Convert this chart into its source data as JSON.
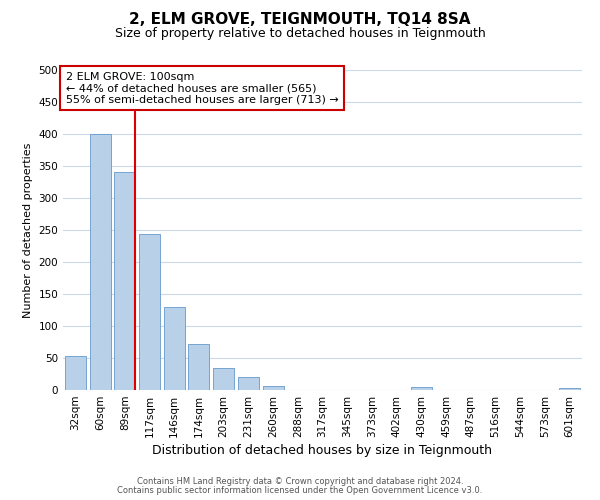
{
  "title": "2, ELM GROVE, TEIGNMOUTH, TQ14 8SA",
  "subtitle": "Size of property relative to detached houses in Teignmouth",
  "xlabel": "Distribution of detached houses by size in Teignmouth",
  "ylabel": "Number of detached properties",
  "bar_labels": [
    "32sqm",
    "60sqm",
    "89sqm",
    "117sqm",
    "146sqm",
    "174sqm",
    "203sqm",
    "231sqm",
    "260sqm",
    "288sqm",
    "317sqm",
    "345sqm",
    "373sqm",
    "402sqm",
    "430sqm",
    "459sqm",
    "487sqm",
    "516sqm",
    "544sqm",
    "573sqm",
    "601sqm"
  ],
  "bar_values": [
    53,
    400,
    340,
    243,
    130,
    72,
    35,
    20,
    6,
    0,
    0,
    0,
    0,
    0,
    5,
    0,
    0,
    0,
    0,
    0,
    3
  ],
  "bar_color": "#b8d0e8",
  "bar_edge_color": "#6699cc",
  "vline_color": "#dd0000",
  "vline_pos": 2.425,
  "ylim": [
    0,
    500
  ],
  "yticks": [
    0,
    50,
    100,
    150,
    200,
    250,
    300,
    350,
    400,
    450,
    500
  ],
  "annotation_text": "2 ELM GROVE: 100sqm\n← 44% of detached houses are smaller (565)\n55% of semi-detached houses are larger (713) →",
  "annotation_box_color": "#ffffff",
  "annotation_box_edge": "#cc0000",
  "footer1": "Contains HM Land Registry data © Crown copyright and database right 2024.",
  "footer2": "Contains public sector information licensed under the Open Government Licence v3.0.",
  "background_color": "#ffffff",
  "grid_color": "#ccd9e8",
  "title_fontsize": 11,
  "subtitle_fontsize": 9,
  "xlabel_fontsize": 9,
  "ylabel_fontsize": 8,
  "tick_fontsize": 7.5,
  "annotation_fontsize": 8,
  "footer_fontsize": 6
}
